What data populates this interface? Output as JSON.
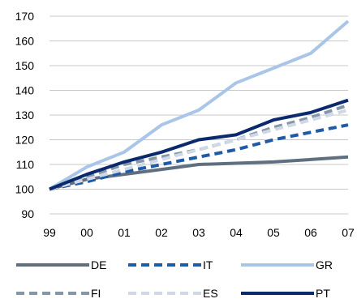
{
  "chart_data": {
    "type": "line",
    "title": "",
    "xlabel": "",
    "ylabel": "",
    "categories": [
      "99",
      "00",
      "01",
      "02",
      "03",
      "04",
      "05",
      "06",
      "07"
    ],
    "ylim": [
      90,
      170
    ],
    "yticks": [
      90,
      100,
      110,
      120,
      130,
      140,
      150,
      160,
      170
    ],
    "grid": "horizontal",
    "legend_position": "bottom",
    "series": [
      {
        "name": "DE",
        "color": "#5f6f80",
        "dash": "solid",
        "values": [
          100,
          104,
          106,
          108,
          110,
          110.5,
          111,
          112,
          113
        ]
      },
      {
        "name": "IT",
        "color": "#1f5aa6",
        "dash": "dashed",
        "values": [
          100,
          103,
          107,
          110,
          113,
          116,
          120,
          123,
          126
        ]
      },
      {
        "name": "GR",
        "color": "#a9c6e8",
        "dash": "solid",
        "values": [
          100,
          109,
          115,
          126,
          132,
          143,
          149,
          155,
          168
        ]
      },
      {
        "name": "FI",
        "color": "#8596a9",
        "dash": "dashed",
        "values": [
          100,
          105,
          110,
          113,
          116,
          120,
          125,
          129,
          134
        ]
      },
      {
        "name": "ES",
        "color": "#cfd8e6",
        "dash": "dashed",
        "values": [
          100,
          104,
          108,
          112,
          116,
          120,
          124,
          128,
          132
        ]
      },
      {
        "name": "PT",
        "color": "#0b2a6e",
        "dash": "solid",
        "values": [
          100,
          106,
          111,
          115,
          120,
          122,
          128,
          131,
          136
        ]
      }
    ]
  }
}
